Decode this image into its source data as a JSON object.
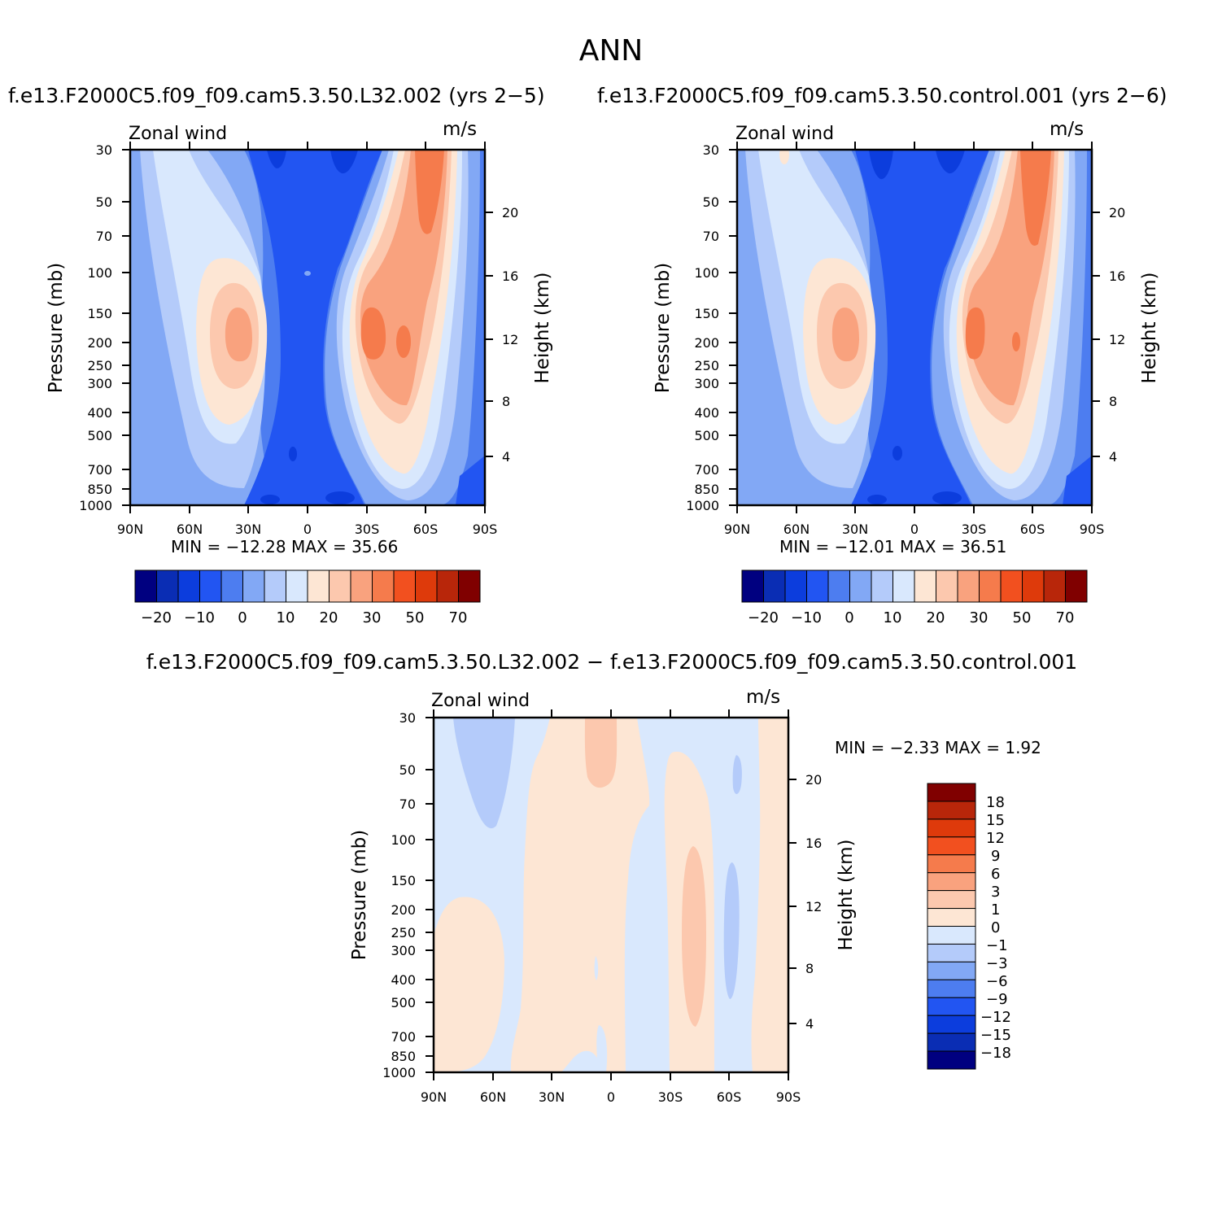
{
  "page_title": "ANN",
  "colors": {
    "base": [
      "#000080",
      "#0a2db4",
      "#0c3ddd",
      "#2255f2",
      "#4d7df0",
      "#82a8f5",
      "#b4cbfa",
      "#d9e8fd",
      "#fde6d4",
      "#fcc8ae",
      "#f9a27e",
      "#f57b4c",
      "#f2501f",
      "#de3a0b",
      "#b8260a",
      "#800000"
    ],
    "diff": [
      "#000080",
      "#0a2db4",
      "#0c3ddd",
      "#2255f2",
      "#4d7df0",
      "#82a8f5",
      "#b4cbfa",
      "#d9e8fd",
      "#fde6d4",
      "#fcc8ae",
      "#f9a27e",
      "#f57b4c",
      "#f2501f",
      "#de3a0b",
      "#b8260a",
      "#800000"
    ]
  },
  "panels": [
    {
      "title": "f.e13.F2000C5.f09_f09.cam5.3.50.L32.002 (yrs 2−5)",
      "variable": "Zonal wind",
      "units": "m/s",
      "min_max": "MIN = −12.28   MAX =   35.66"
    },
    {
      "title": "f.e13.F2000C5.f09_f09.cam5.3.50.control.001 (yrs 2−6)",
      "variable": "Zonal wind",
      "units": "m/s",
      "min_max": "MIN = −12.01   MAX =   36.51"
    },
    {
      "title": "f.e13.F2000C5.f09_f09.cam5.3.50.L32.002 − f.e13.F2000C5.f09_f09.cam5.3.50.control.001",
      "variable": "Zonal wind",
      "units": "m/s",
      "min_max": "MIN =   −2.33   MAX =    1.92"
    }
  ],
  "chart_data": [
    {
      "type": "heatmap",
      "xlabel": "",
      "ylabel": "Pressure (mb)",
      "y2label": "Height (km)",
      "x_ticks": [
        "90N",
        "60N",
        "30N",
        "0",
        "30S",
        "60S",
        "90S"
      ],
      "y_ticks": [
        "30",
        "50",
        "70",
        "100",
        "150",
        "200",
        "250",
        "300",
        "400",
        "500",
        "700",
        "850",
        "1000"
      ],
      "y2_ticks": [
        "20",
        "16",
        "12",
        "8",
        "4"
      ],
      "levels_labels": [
        "−20",
        "−10",
        "0",
        "10",
        "20",
        "30",
        "50",
        "70"
      ],
      "min": -12.28,
      "max": 35.66
    },
    {
      "type": "heatmap",
      "xlabel": "",
      "ylabel": "Pressure (mb)",
      "y2label": "Height (km)",
      "x_ticks": [
        "90N",
        "60N",
        "30N",
        "0",
        "30S",
        "60S",
        "90S"
      ],
      "y_ticks": [
        "30",
        "50",
        "70",
        "100",
        "150",
        "200",
        "250",
        "300",
        "400",
        "500",
        "700",
        "850",
        "1000"
      ],
      "y2_ticks": [
        "20",
        "16",
        "12",
        "8",
        "4"
      ],
      "levels_labels": [
        "−20",
        "−10",
        "0",
        "10",
        "20",
        "30",
        "50",
        "70"
      ],
      "min": -12.01,
      "max": 36.51
    },
    {
      "type": "heatmap",
      "xlabel": "",
      "ylabel": "Pressure (mb)",
      "y2label": "Height (km)",
      "x_ticks": [
        "90N",
        "60N",
        "30N",
        "0",
        "30S",
        "60S",
        "90S"
      ],
      "y_ticks": [
        "30",
        "50",
        "70",
        "100",
        "150",
        "200",
        "250",
        "300",
        "400",
        "500",
        "700",
        "850",
        "1000"
      ],
      "y2_ticks": [
        "20",
        "16",
        "12",
        "8",
        "4"
      ],
      "levels_labels": [
        "18",
        "15",
        "12",
        "9",
        "6",
        "3",
        "1",
        "0",
        "−1",
        "−3",
        "−6",
        "−9",
        "−12",
        "−15",
        "−18"
      ],
      "min": -2.33,
      "max": 1.92
    }
  ]
}
